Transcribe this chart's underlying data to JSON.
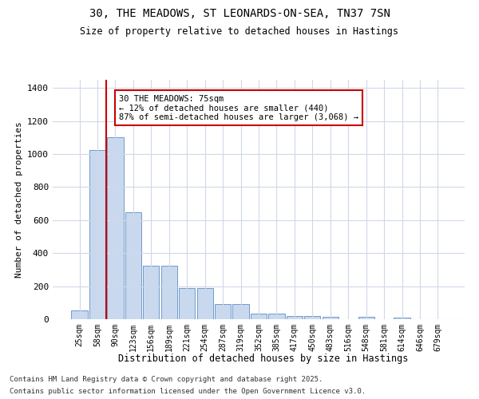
{
  "title1": "30, THE MEADOWS, ST LEONARDS-ON-SEA, TN37 7SN",
  "title2": "Size of property relative to detached houses in Hastings",
  "xlabel": "Distribution of detached houses by size in Hastings",
  "ylabel": "Number of detached properties",
  "bar_categories": [
    "25sqm",
    "58sqm",
    "90sqm",
    "123sqm",
    "156sqm",
    "189sqm",
    "221sqm",
    "254sqm",
    "287sqm",
    "319sqm",
    "352sqm",
    "385sqm",
    "417sqm",
    "450sqm",
    "483sqm",
    "516sqm",
    "548sqm",
    "581sqm",
    "614sqm",
    "646sqm",
    "679sqm"
  ],
  "bar_values": [
    55,
    1025,
    1100,
    650,
    325,
    325,
    190,
    190,
    90,
    90,
    35,
    35,
    20,
    20,
    15,
    0,
    15,
    0,
    10,
    0,
    0
  ],
  "bar_color": "#c8d9ef",
  "bar_edge_color": "#7399c6",
  "vline_x": 1.5,
  "vline_color": "#cc0000",
  "annotation_text": "30 THE MEADOWS: 75sqm\n← 12% of detached houses are smaller (440)\n87% of semi-detached houses are larger (3,068) →",
  "annotation_box_color": "#ffffff",
  "annotation_box_edge": "#cc0000",
  "ylim": [
    0,
    1450
  ],
  "yticks": [
    0,
    200,
    400,
    600,
    800,
    1000,
    1200,
    1400
  ],
  "footer1": "Contains HM Land Registry data © Crown copyright and database right 2025.",
  "footer2": "Contains public sector information licensed under the Open Government Licence v3.0.",
  "bg_color": "#ffffff",
  "plot_bg_color": "#ffffff",
  "grid_color": "#d0d8e8"
}
